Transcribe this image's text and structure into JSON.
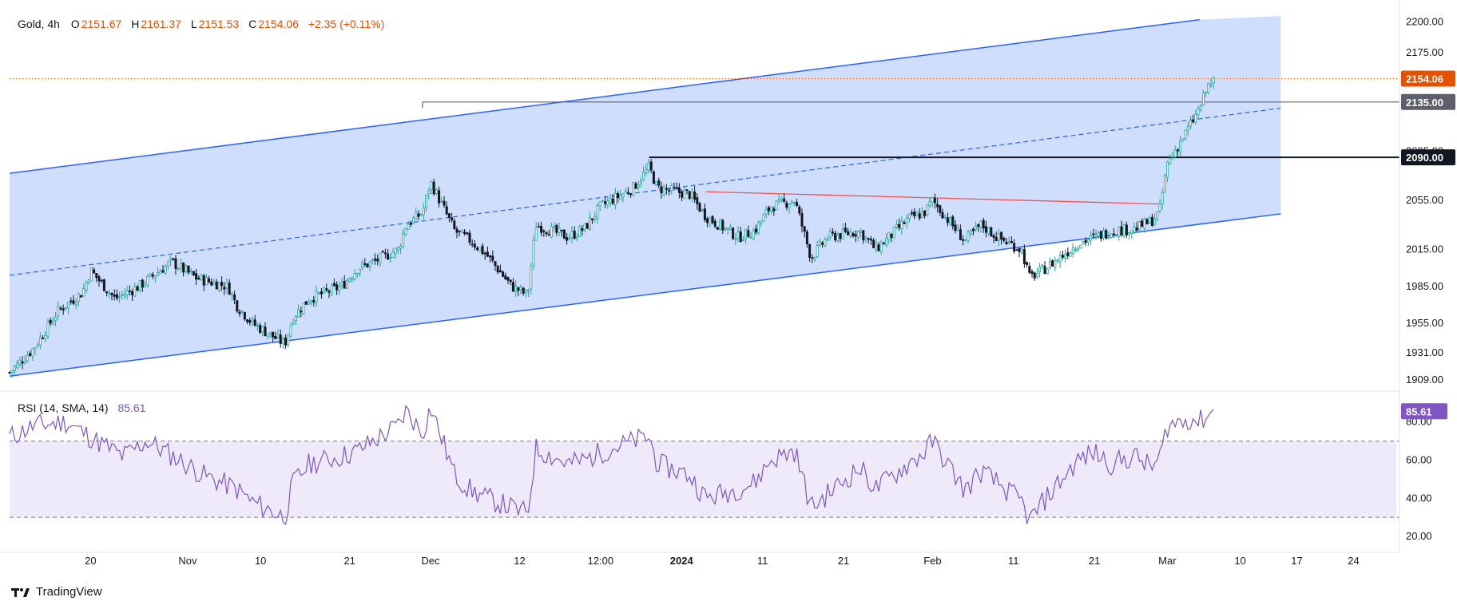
{
  "legend": {
    "symbol": "Gold, 4h",
    "open_label": "O",
    "open": "2151.67",
    "high_label": "H",
    "high": "2161.37",
    "low_label": "L",
    "low": "2151.53",
    "close_label": "C",
    "close": "2154.06",
    "change": "+2.35 (+0.11%)"
  },
  "rsi_legend": {
    "name": "RSI (14, SMA, 14)",
    "value": "85.61"
  },
  "branding": {
    "name": "TradingView"
  },
  "colors": {
    "up": "#26a69a",
    "down": "#131722",
    "channel_fill": "#c6d8fc",
    "channel_line": "#2962ff",
    "price_line": "#e65100",
    "rsi_line": "#7e57c2",
    "rsi_band": "#efeaf9"
  },
  "chart_data": [
    {
      "type": "candlestick",
      "title": "Gold, 4h",
      "x_ticks": [
        "20",
        "Nov",
        "10",
        "21",
        "Dec",
        "12",
        "12:00",
        "2024",
        "11",
        "21",
        "Feb",
        "11",
        "21",
        "Mar",
        "10",
        "17",
        "24"
      ],
      "y_ticks": [
        "2200.00",
        "2175.00",
        "2095.00",
        "2055.00",
        "2015.00",
        "1985.00",
        "1955.00",
        "1931.00",
        "1909.00"
      ],
      "ylim": [
        1905,
        2205
      ],
      "last_price": 2154.06,
      "price_labels": [
        {
          "value": 2154.06,
          "text": "2154.06",
          "style": "last"
        },
        {
          "value": 2135.0,
          "text": "2135.00",
          "style": "gray"
        },
        {
          "value": 2090.0,
          "text": "2090.00",
          "style": "black"
        }
      ],
      "channel": {
        "lower": [
          [
            "2023-10-10",
            1912
          ],
          [
            "2024-03-15",
            2044
          ]
        ],
        "upper": [
          [
            "2023-10-10",
            2077
          ],
          [
            "2024-03-05",
            2202
          ]
        ],
        "mid": [
          [
            "2023-10-10",
            1994
          ],
          [
            "2024-03-15",
            2130
          ]
        ]
      },
      "horizontal_lines": [
        {
          "value": 2135,
          "from": "2023-11-30"
        },
        {
          "value": 2090,
          "from": "2023-12-28"
        }
      ],
      "trend_line": [
        [
          "2024-01-04",
          2062
        ],
        [
          "2024-02-29",
          2052
        ]
      ],
      "close_path": [
        [
          "2023-10-10",
          1915
        ],
        [
          "2023-10-13",
          1935
        ],
        [
          "2023-10-16",
          1965
        ],
        [
          "2023-10-19",
          1980
        ],
        [
          "2023-10-20",
          1998
        ],
        [
          "2023-10-23",
          1975
        ],
        [
          "2023-10-26",
          1985
        ],
        [
          "2023-10-30",
          2005
        ],
        [
          "2023-11-02",
          1992
        ],
        [
          "2023-11-03",
          1990
        ],
        [
          "2023-11-06",
          1985
        ],
        [
          "2023-11-07",
          1970
        ],
        [
          "2023-11-09",
          1955
        ],
        [
          "2023-11-13",
          1938
        ],
        [
          "2023-11-14",
          1960
        ],
        [
          "2023-11-16",
          1975
        ],
        [
          "2023-11-20",
          1985
        ],
        [
          "2023-11-22",
          2000
        ],
        [
          "2023-11-24",
          2005
        ],
        [
          "2023-11-27",
          2015
        ],
        [
          "2023-11-28",
          2035
        ],
        [
          "2023-11-30",
          2045
        ],
        [
          "2023-12-01",
          2070
        ],
        [
          "2023-12-04",
          2030
        ],
        [
          "2023-12-06",
          2022
        ],
        [
          "2023-12-08",
          2010
        ],
        [
          "2023-12-11",
          1985
        ],
        [
          "2023-12-13",
          1978
        ],
        [
          "2023-12-14",
          2035
        ],
        [
          "2023-12-18",
          2025
        ],
        [
          "2023-12-20",
          2032
        ],
        [
          "2023-12-22",
          2050
        ],
        [
          "2023-12-26",
          2065
        ],
        [
          "2023-12-28",
          2082
        ],
        [
          "2023-12-29",
          2065
        ],
        [
          "2024-01-02",
          2060
        ],
        [
          "2024-01-04",
          2042
        ],
        [
          "2024-01-08",
          2025
        ],
        [
          "2024-01-10",
          2030
        ],
        [
          "2024-01-12",
          2050
        ],
        [
          "2024-01-15",
          2055
        ],
        [
          "2024-01-17",
          2008
        ],
        [
          "2024-01-19",
          2025
        ],
        [
          "2024-01-23",
          2030
        ],
        [
          "2024-01-25",
          2015
        ],
        [
          "2024-01-29",
          2040
        ],
        [
          "2024-01-31",
          2045
        ],
        [
          "2024-02-01",
          2055
        ],
        [
          "2024-02-05",
          2022
        ],
        [
          "2024-02-07",
          2035
        ],
        [
          "2024-02-09",
          2025
        ],
        [
          "2024-02-12",
          2015
        ],
        [
          "2024-02-13",
          1992
        ],
        [
          "2024-02-15",
          2000
        ],
        [
          "2024-02-19",
          2020
        ],
        [
          "2024-02-21",
          2025
        ],
        [
          "2024-02-23",
          2030
        ],
        [
          "2024-02-26",
          2032
        ],
        [
          "2024-02-28",
          2038
        ],
        [
          "2024-02-29",
          2045
        ],
        [
          "2024-03-01",
          2085
        ],
        [
          "2024-03-04",
          2118
        ],
        [
          "2024-03-05",
          2130
        ],
        [
          "2024-03-06",
          2148
        ],
        [
          "2024-03-07",
          2154
        ]
      ]
    },
    {
      "type": "line",
      "title": "RSI (14, SMA, 14)",
      "y_ticks": [
        "80.00",
        "60.00",
        "40.00",
        "20.00"
      ],
      "ylim": [
        15,
        92
      ],
      "bands": [
        70,
        30
      ],
      "last_value": 85.61,
      "values": [
        [
          "2023-10-10",
          72
        ],
        [
          "2023-10-13",
          78
        ],
        [
          "2023-10-17",
          80
        ],
        [
          "2023-10-20",
          72
        ],
        [
          "2023-10-24",
          62
        ],
        [
          "2023-10-27",
          70
        ],
        [
          "2023-10-31",
          60
        ],
        [
          "2023-11-03",
          52
        ],
        [
          "2023-11-07",
          45
        ],
        [
          "2023-11-09",
          38
        ],
        [
          "2023-11-13",
          30
        ],
        [
          "2023-11-14",
          48
        ],
        [
          "2023-11-16",
          58
        ],
        [
          "2023-11-20",
          62
        ],
        [
          "2023-11-22",
          65
        ],
        [
          "2023-11-27",
          78
        ],
        [
          "2023-11-28",
          86
        ],
        [
          "2023-11-30",
          74
        ],
        [
          "2023-12-01",
          88
        ],
        [
          "2023-12-04",
          52
        ],
        [
          "2023-12-06",
          44
        ],
        [
          "2023-12-08",
          40
        ],
        [
          "2023-12-11",
          35
        ],
        [
          "2023-12-13",
          32
        ],
        [
          "2023-12-14",
          66
        ],
        [
          "2023-12-18",
          58
        ],
        [
          "2023-12-20",
          60
        ],
        [
          "2023-12-22",
          64
        ],
        [
          "2023-12-26",
          70
        ],
        [
          "2023-12-28",
          72
        ],
        [
          "2023-12-29",
          58
        ],
        [
          "2024-01-02",
          52
        ],
        [
          "2024-01-04",
          40
        ],
        [
          "2024-01-08",
          45
        ],
        [
          "2024-01-10",
          48
        ],
        [
          "2024-01-12",
          60
        ],
        [
          "2024-01-15",
          65
        ],
        [
          "2024-01-17",
          35
        ],
        [
          "2024-01-19",
          42
        ],
        [
          "2024-01-23",
          56
        ],
        [
          "2024-01-25",
          45
        ],
        [
          "2024-01-29",
          58
        ],
        [
          "2024-01-31",
          64
        ],
        [
          "2024-02-01",
          70
        ],
        [
          "2024-02-05",
          44
        ],
        [
          "2024-02-07",
          54
        ],
        [
          "2024-02-09",
          48
        ],
        [
          "2024-02-12",
          38
        ],
        [
          "2024-02-13",
          28
        ],
        [
          "2024-02-15",
          40
        ],
        [
          "2024-02-19",
          60
        ],
        [
          "2024-02-21",
          64
        ],
        [
          "2024-02-23",
          58
        ],
        [
          "2024-02-26",
          62
        ],
        [
          "2024-02-28",
          56
        ],
        [
          "2024-02-29",
          60
        ],
        [
          "2024-03-01",
          78
        ],
        [
          "2024-03-04",
          82
        ],
        [
          "2024-03-05",
          80
        ],
        [
          "2024-03-06",
          84
        ],
        [
          "2024-03-07",
          86
        ]
      ]
    }
  ]
}
